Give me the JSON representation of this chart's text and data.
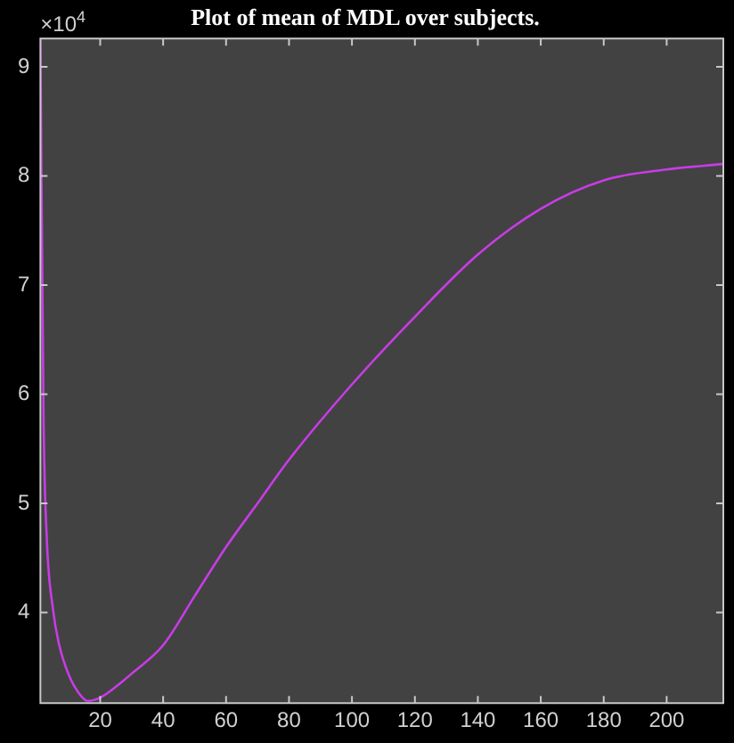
{
  "chart_data": {
    "type": "line",
    "title": "Plot of mean of MDL over subjects.",
    "x": [
      1,
      2,
      3,
      5,
      7,
      10,
      13,
      16,
      20,
      25,
      30,
      40,
      50,
      60,
      70,
      80,
      100,
      120,
      140,
      160,
      180,
      200,
      218
    ],
    "series": [
      {
        "color": "#c83ce6",
        "values": [
          9.26,
          5.8,
          4.7,
          4.03,
          3.7,
          3.43,
          3.27,
          3.19,
          3.22,
          3.32,
          3.44,
          3.7,
          4.15,
          4.6,
          5.0,
          5.4,
          6.09,
          6.71,
          7.28,
          7.7,
          7.96,
          8.06,
          8.11
        ]
      }
    ],
    "xlim": [
      1,
      218
    ],
    "xticks": [
      20,
      40,
      60,
      80,
      100,
      120,
      140,
      160,
      180,
      200
    ],
    "ylim": [
      3.17,
      9.26
    ],
    "yticks": [
      4,
      5,
      6,
      7,
      8,
      9
    ],
    "annotations": [
      "×10$^{4}$"
    ],
    "grid": false,
    "legend": false,
    "marker": "none",
    "line_style": "solid"
  }
}
